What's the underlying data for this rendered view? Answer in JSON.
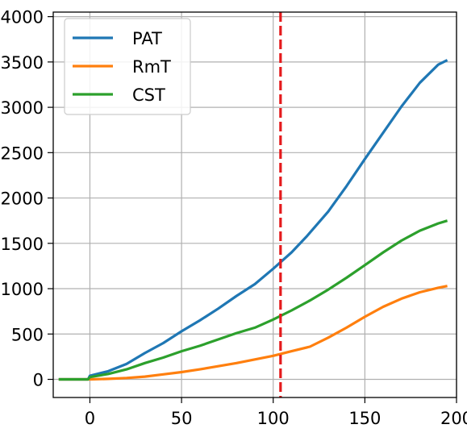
{
  "chart_data": {
    "type": "line",
    "xlim": [
      -20,
      200
    ],
    "ylim": [
      -200,
      4050
    ],
    "x_ticks": [
      0,
      50,
      100,
      150,
      200
    ],
    "y_ticks": [
      0,
      500,
      1000,
      1500,
      2000,
      2500,
      3000,
      3500,
      4000
    ],
    "x_tick_labels": [
      "0",
      "50",
      "100",
      "150",
      "200"
    ],
    "y_tick_labels": [
      "0",
      "500",
      "1000",
      "1500",
      "2000",
      "2500",
      "3000",
      "3500",
      "4000"
    ],
    "grid": true,
    "legend_position": "top-left",
    "vline": {
      "x": 104,
      "color": "#e41a1c",
      "style": "dashed"
    },
    "series": [
      {
        "name": "PAT",
        "color": "#1f77b4",
        "x": [
          -17,
          -1,
          0,
          10,
          20,
          30,
          40,
          50,
          60,
          70,
          80,
          90,
          100,
          110,
          118,
          130,
          140,
          150,
          160,
          170,
          180,
          190,
          195
        ],
        "y": [
          0,
          0,
          40,
          90,
          170,
          290,
          400,
          530,
          650,
          780,
          920,
          1050,
          1220,
          1400,
          1570,
          1850,
          2130,
          2430,
          2720,
          3010,
          3270,
          3470,
          3520
        ]
      },
      {
        "name": "RmT",
        "color": "#ff7f0e",
        "x": [
          -17,
          0,
          10,
          20,
          30,
          40,
          50,
          60,
          70,
          80,
          90,
          100,
          110,
          120,
          130,
          140,
          150,
          160,
          170,
          180,
          190,
          195
        ],
        "y": [
          0,
          0,
          5,
          15,
          30,
          55,
          80,
          110,
          145,
          180,
          220,
          260,
          310,
          360,
          460,
          570,
          690,
          800,
          890,
          960,
          1010,
          1030
        ]
      },
      {
        "name": "CST",
        "color": "#2ca02c",
        "x": [
          -17,
          -1,
          0,
          10,
          20,
          30,
          40,
          50,
          60,
          70,
          80,
          90,
          100,
          110,
          120,
          130,
          140,
          150,
          160,
          170,
          180,
          190,
          195
        ],
        "y": [
          0,
          0,
          25,
          60,
          110,
          180,
          240,
          310,
          370,
          440,
          510,
          570,
          660,
          760,
          870,
          990,
          1120,
          1260,
          1400,
          1530,
          1640,
          1720,
          1750
        ]
      }
    ]
  }
}
